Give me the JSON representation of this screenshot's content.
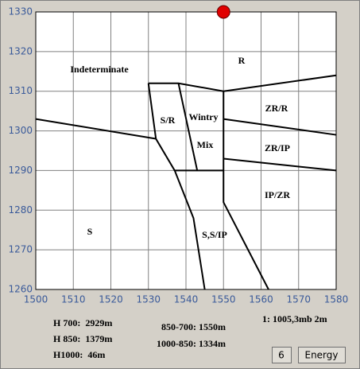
{
  "chart_data": {
    "type": "region",
    "xlim": [
      1500,
      1580
    ],
    "xticks": [
      1500,
      1510,
      1520,
      1530,
      1540,
      1550,
      1560,
      1570,
      1580
    ],
    "ylim": [
      1260,
      1330
    ],
    "yticks": [
      1260,
      1270,
      1280,
      1290,
      1300,
      1310,
      1320,
      1330
    ],
    "grid": true,
    "boundaries": [
      {
        "x": [
          1500,
          1532
        ],
        "y": [
          1303,
          1298
        ]
      },
      {
        "x": [
          1530,
          1532,
          1537,
          1542,
          1545
        ],
        "y": [
          1312,
          1298,
          1290,
          1278,
          1260
        ]
      },
      {
        "x": [
          1530,
          1538,
          1550,
          1580
        ],
        "y": [
          1312,
          1312,
          1310,
          1314
        ]
      },
      {
        "x": [
          1538,
          1543
        ],
        "y": [
          1312,
          1290
        ]
      },
      {
        "x": [
          1537,
          1550
        ],
        "y": [
          1290,
          1290
        ]
      },
      {
        "x": [
          1550,
          1550,
          1562
        ],
        "y": [
          1310,
          1282,
          1260
        ]
      },
      {
        "x": [
          1550,
          1580
        ],
        "y": [
          1303,
          1299
        ]
      },
      {
        "x": [
          1550,
          1580
        ],
        "y": [
          1293,
          1290
        ]
      }
    ],
    "regions": [
      "Indeterminate",
      "R",
      "S/R",
      "Wintry",
      "Mix",
      "ZR/R",
      "ZR/IP",
      "IP/ZR",
      "S",
      "S,S/IP"
    ],
    "point": {
      "x": 1550,
      "y": 1330,
      "color": "#e00000"
    }
  },
  "readouts": [
    "H 700:  2929m",
    "H 850:  1379m",
    "H1000:  46m",
    "850-700: 1550m",
    "1000-850: 1334m",
    "1: 1005,3mb 2m"
  ],
  "buttons": [
    "6",
    "Energy"
  ]
}
